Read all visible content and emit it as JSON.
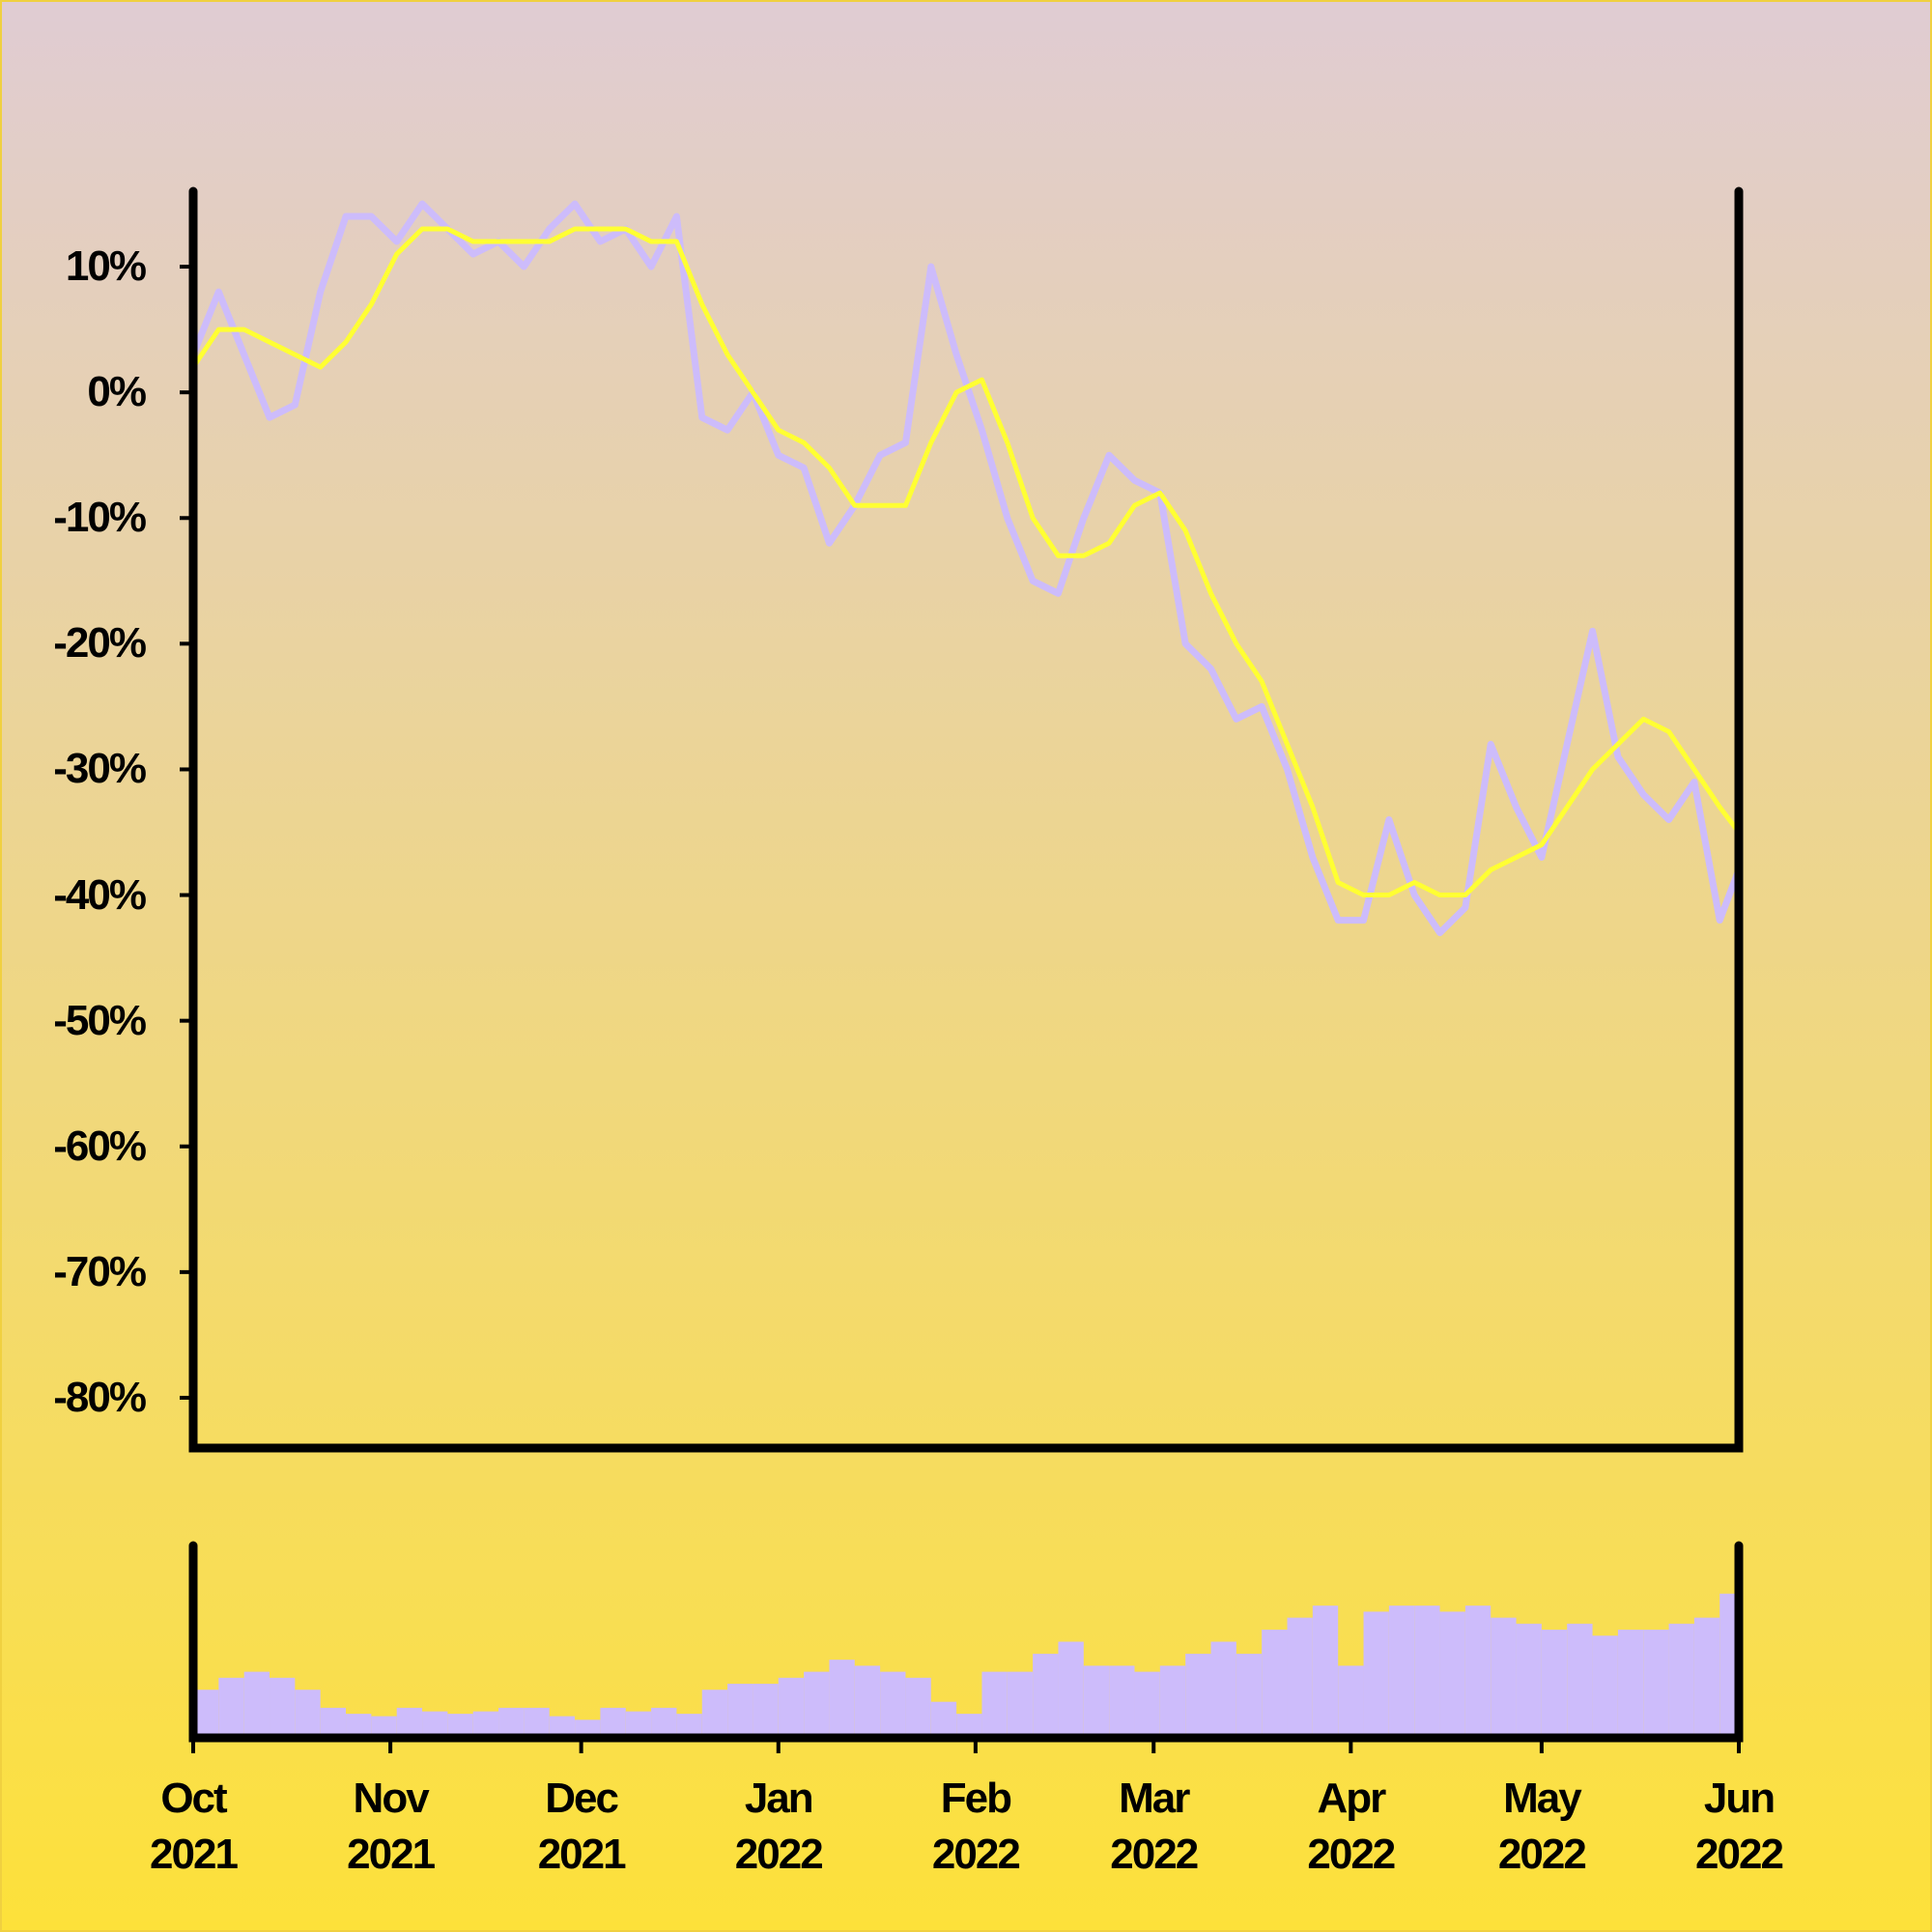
{
  "chart_data": [
    {
      "type": "line",
      "x": [
        0,
        4,
        8,
        12,
        16,
        20,
        24,
        28,
        32,
        36,
        40,
        44,
        48,
        52,
        56,
        60,
        64,
        68,
        72,
        76,
        80,
        84,
        88,
        92,
        96,
        100,
        104,
        108,
        112,
        116,
        120,
        124,
        128,
        132,
        136,
        140,
        144,
        148,
        152,
        156,
        160,
        164,
        168,
        172,
        176,
        180,
        184,
        188,
        192,
        196,
        200,
        204,
        208,
        212,
        216,
        220,
        224,
        228,
        232,
        236,
        240,
        243
      ],
      "xlim": [
        0,
        243
      ],
      "ylim": [
        -84,
        16
      ],
      "yticks": [
        {
          "value": 10,
          "label": "10%"
        },
        {
          "value": 0,
          "label": "0%"
        },
        {
          "value": -10,
          "label": "-10%"
        },
        {
          "value": -20,
          "label": "-20%"
        },
        {
          "value": -30,
          "label": "-30%"
        },
        {
          "value": -40,
          "label": "-40%"
        },
        {
          "value": -50,
          "label": "-50%"
        },
        {
          "value": -60,
          "label": "-60%"
        },
        {
          "value": -70,
          "label": "-70%"
        },
        {
          "value": -80,
          "label": "-80%"
        }
      ],
      "series": [
        {
          "color": "#cdbcfb",
          "values": [
            3,
            8,
            3,
            -2,
            -1,
            8,
            14,
            14,
            12,
            15,
            13,
            11,
            12,
            10,
            13,
            15,
            12,
            13,
            10,
            14,
            -2,
            -3,
            0,
            -5,
            -6,
            -12,
            -9,
            -5,
            -4,
            10,
            3,
            -3,
            -10,
            -15,
            -16,
            -10,
            -5,
            -7,
            -8,
            -20,
            -22,
            -26,
            -25,
            -30,
            -37,
            -42,
            -42,
            -34,
            -40,
            -43,
            -41,
            -28,
            -33,
            -37,
            -28,
            -19,
            -29,
            -32,
            -34,
            -31,
            -42,
            -38
          ]
        },
        {
          "color": "#ffff33",
          "values": [
            2,
            5,
            5,
            4,
            3,
            2,
            4,
            7,
            11,
            13,
            13,
            12,
            12,
            12,
            12,
            13,
            13,
            13,
            12,
            12,
            7,
            3,
            0,
            -3,
            -4,
            -6,
            -9,
            -9,
            -9,
            -4,
            0,
            1,
            -4,
            -10,
            -13,
            -13,
            -12,
            -9,
            -8,
            -11,
            -16,
            -20,
            -23,
            -28,
            -33,
            -39,
            -40,
            -40,
            -39,
            -40,
            -40,
            -38,
            -37,
            -36,
            -33,
            -30,
            -28,
            -26,
            -27,
            -30,
            -33,
            -35
          ]
        }
      ]
    },
    {
      "type": "bar",
      "x": [
        0,
        4,
        8,
        12,
        16,
        20,
        24,
        28,
        32,
        36,
        40,
        44,
        48,
        52,
        56,
        60,
        64,
        68,
        72,
        76,
        80,
        84,
        88,
        92,
        96,
        100,
        104,
        108,
        112,
        116,
        120,
        124,
        128,
        132,
        136,
        140,
        144,
        148,
        152,
        156,
        160,
        164,
        168,
        172,
        176,
        180,
        184,
        188,
        192,
        196,
        200,
        204,
        208,
        212,
        216,
        220,
        224,
        228,
        232,
        236,
        240,
        243
      ],
      "xlim": [
        0,
        243
      ],
      "ylim": [
        0,
        160
      ],
      "color": "#cdbcfb",
      "values": [
        40,
        50,
        55,
        50,
        40,
        25,
        20,
        18,
        25,
        22,
        20,
        22,
        25,
        25,
        18,
        15,
        25,
        22,
        25,
        20,
        40,
        45,
        45,
        50,
        55,
        65,
        60,
        55,
        50,
        30,
        20,
        55,
        55,
        70,
        80,
        60,
        60,
        55,
        60,
        70,
        80,
        70,
        90,
        100,
        110,
        60,
        105,
        110,
        110,
        105,
        110,
        100,
        95,
        90,
        95,
        85,
        90,
        90,
        95,
        100,
        120,
        130
      ],
      "xticks": [
        {
          "value": 0,
          "label": "Oct\n2021"
        },
        {
          "value": 31,
          "label": "Nov\n2021"
        },
        {
          "value": 61,
          "label": "Dec\n2021"
        },
        {
          "value": 92,
          "label": "Jan\n2022"
        },
        {
          "value": 123,
          "label": "Feb\n2022"
        },
        {
          "value": 151,
          "label": "Mar\n2022"
        },
        {
          "value": 182,
          "label": "Apr\n2022"
        },
        {
          "value": 212,
          "label": "May\n2022"
        },
        {
          "value": 243,
          "label": "Jun\n2022"
        }
      ]
    }
  ]
}
